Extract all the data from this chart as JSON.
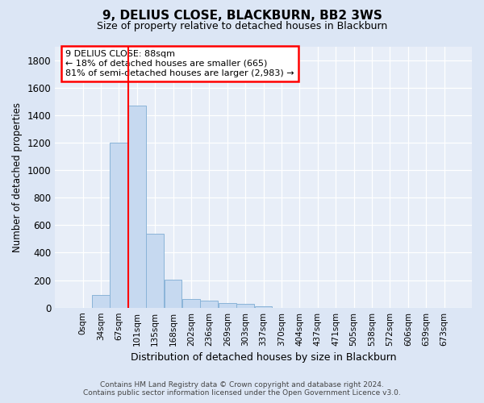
{
  "title": "9, DELIUS CLOSE, BLACKBURN, BB2 3WS",
  "subtitle": "Size of property relative to detached houses in Blackburn",
  "xlabel": "Distribution of detached houses by size in Blackburn",
  "ylabel": "Number of detached properties",
  "bar_labels": [
    "0sqm",
    "34sqm",
    "67sqm",
    "101sqm",
    "135sqm",
    "168sqm",
    "202sqm",
    "236sqm",
    "269sqm",
    "303sqm",
    "337sqm",
    "370sqm",
    "404sqm",
    "437sqm",
    "471sqm",
    "505sqm",
    "538sqm",
    "572sqm",
    "606sqm",
    "639sqm",
    "673sqm"
  ],
  "bar_values": [
    0,
    90,
    1200,
    1470,
    540,
    205,
    65,
    48,
    35,
    28,
    8,
    0,
    0,
    0,
    0,
    0,
    0,
    0,
    0,
    0,
    0
  ],
  "bar_color": "#c6d9f0",
  "bar_edge_color": "#8ab4d8",
  "property_line_x": 2.5,
  "annotation_text_line1": "9 DELIUS CLOSE: 88sqm",
  "annotation_text_line2": "← 18% of detached houses are smaller (665)",
  "annotation_text_line3": "81% of semi-detached houses are larger (2,983) →",
  "ylim": [
    0,
    1900
  ],
  "yticks": [
    0,
    200,
    400,
    600,
    800,
    1000,
    1200,
    1400,
    1600,
    1800
  ],
  "bg_color": "#dce6f5",
  "plot_bg_color": "#e8eef8",
  "footer_line1": "Contains HM Land Registry data © Crown copyright and database right 2024.",
  "footer_line2": "Contains public sector information licensed under the Open Government Licence v3.0."
}
